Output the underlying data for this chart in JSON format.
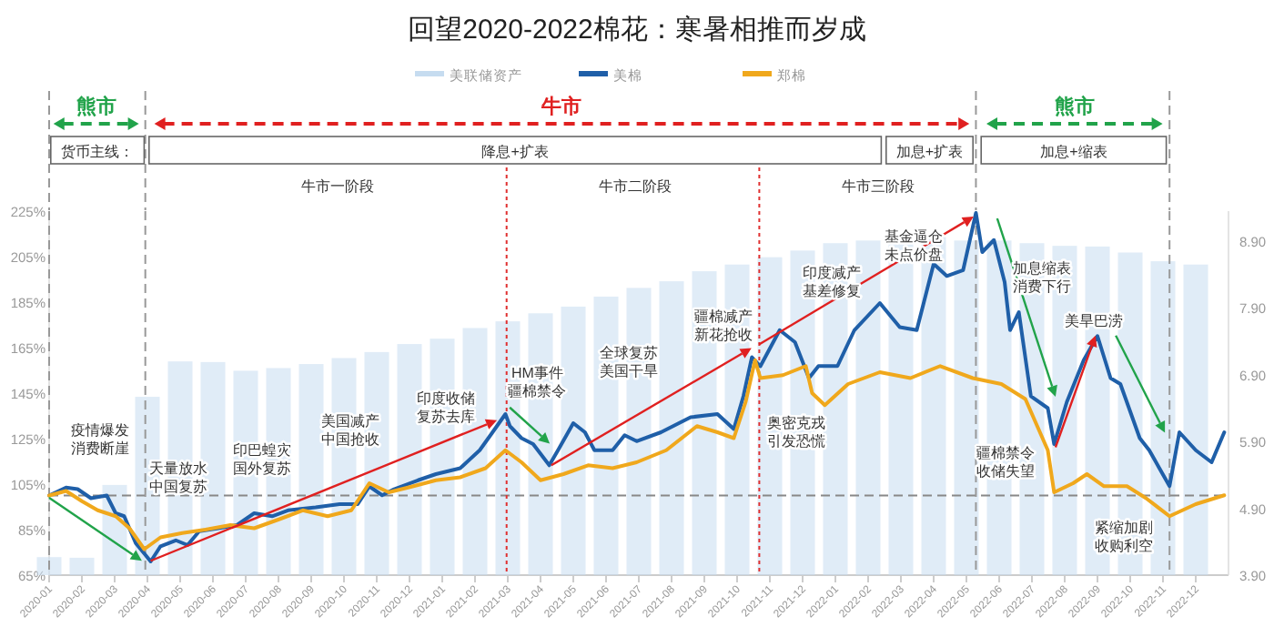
{
  "chart_data": {
    "type": "line",
    "title": "回望2020-2022棉花：寒暑相推而岁成",
    "legend": "top",
    "xlim": [
      "2020-01",
      "2023-01"
    ],
    "xticks": [
      "2020-01",
      "2020-02",
      "2020-03",
      "2020-04",
      "2020-05",
      "2020-06",
      "2020-07",
      "2020-08",
      "2020-09",
      "2020-10",
      "2020-11",
      "2020-12",
      "2021-01",
      "2021-02",
      "2021-03",
      "2021-04",
      "2021-05",
      "2021-06",
      "2021-07",
      "2021-08",
      "2021-09",
      "2021-10",
      "2021-11",
      "2021-12",
      "2022-01",
      "2022-02",
      "2022-03",
      "2022-04",
      "2022-05",
      "2022-06",
      "2022-07",
      "2022-08",
      "2022-09",
      "2022-10",
      "2022-11",
      "2022-12"
    ],
    "ylim": [
      65,
      225
    ],
    "yticks": [
      {
        "value": 65,
        "label": "65%"
      },
      {
        "value": 85,
        "label": "85%"
      },
      {
        "value": 105,
        "label": "105%"
      },
      {
        "value": 125,
        "label": "125%"
      },
      {
        "value": 145,
        "label": "145%"
      },
      {
        "value": 165,
        "label": "165%"
      },
      {
        "value": 185,
        "label": "185%"
      },
      {
        "value": 205,
        "label": "205%"
      },
      {
        "value": 225,
        "label": "225%"
      }
    ],
    "y2lim": [
      3.9,
      9.35
    ],
    "y2ticks": [
      {
        "value": 3.9,
        "label": "3.90"
      },
      {
        "value": 4.9,
        "label": "4.90"
      },
      {
        "value": 5.9,
        "label": "5.90"
      },
      {
        "value": 6.9,
        "label": "6.90"
      },
      {
        "value": 7.9,
        "label": "7.90"
      },
      {
        "value": 8.9,
        "label": "8.90"
      }
    ],
    "series": [
      {
        "name": "美联储资产",
        "type": "bar",
        "axis": "y2",
        "color": "#c6dcf0",
        "x": [
          "2020-01",
          "2020-02",
          "2020-03",
          "2020-04",
          "2020-05",
          "2020-06",
          "2020-07",
          "2020-08",
          "2020-09",
          "2020-10",
          "2020-11",
          "2020-12",
          "2021-01",
          "2021-02",
          "2021-03",
          "2021-04",
          "2021-05",
          "2021-06",
          "2021-07",
          "2021-08",
          "2021-09",
          "2021-10",
          "2021-11",
          "2021-12",
          "2022-01",
          "2022-02",
          "2022-03",
          "2022-04",
          "2022-05",
          "2022-06",
          "2022-07",
          "2022-08",
          "2022-09",
          "2022-10",
          "2022-11",
          "2022-12"
        ],
        "values": [
          4.17,
          4.16,
          5.25,
          6.57,
          7.1,
          7.09,
          6.96,
          7.0,
          7.06,
          7.15,
          7.24,
          7.36,
          7.44,
          7.6,
          7.7,
          7.82,
          7.92,
          8.07,
          8.2,
          8.3,
          8.45,
          8.55,
          8.66,
          8.76,
          8.87,
          8.91,
          8.94,
          8.96,
          8.91,
          8.91,
          8.87,
          8.83,
          8.82,
          8.73,
          8.6,
          8.55
        ]
      },
      {
        "name": "美棉",
        "color": "#1f5fa8",
        "x": [
          "2020-01-01",
          "2020-01-17",
          "2020-01-28",
          "2020-02-09",
          "2020-02-23",
          "2020-03-02",
          "2020-03-10",
          "2020-03-21",
          "2020-03-29",
          "2020-04-04",
          "2020-04-13",
          "2020-04-27",
          "2020-05-08",
          "2020-05-19",
          "2020-06-06",
          "2020-06-23",
          "2020-07-09",
          "2020-07-26",
          "2020-08-10",
          "2020-09-05",
          "2020-09-27",
          "2020-10-14",
          "2020-10-25",
          "2020-11-06",
          "2020-11-17",
          "2020-12-09",
          "2020-12-26",
          "2021-01-18",
          "2021-02-05",
          "2021-02-16",
          "2021-02-27",
          "2021-03-03",
          "2021-03-14",
          "2021-03-25",
          "2021-04-09",
          "2021-04-17",
          "2021-05-01",
          "2021-05-12",
          "2021-05-21",
          "2021-06-07",
          "2021-06-18",
          "2021-06-29",
          "2021-07-22",
          "2021-08-19",
          "2021-09-13",
          "2021-09-28",
          "2021-10-07",
          "2021-10-15",
          "2021-10-23",
          "2021-11-10",
          "2021-11-24",
          "2021-12-07",
          "2021-12-16",
          "2022-01-03",
          "2022-01-19",
          "2022-02-11",
          "2022-02-28",
          "2022-03-16",
          "2022-04-01",
          "2022-04-13",
          "2022-04-28",
          "2022-05-10",
          "2022-05-16",
          "2022-05-27",
          "2022-06-06",
          "2022-06-11",
          "2022-06-19",
          "2022-06-30",
          "2022-07-16",
          "2022-07-22",
          "2022-08-03",
          "2022-08-19",
          "2022-09-01",
          "2022-09-13",
          "2022-09-22",
          "2022-10-10",
          "2022-10-19",
          "2022-11-07",
          "2022-11-16",
          "2022-12-01",
          "2022-12-16",
          "2022-12-28"
        ],
        "values": [
          100,
          103.5,
          102.8,
          98.8,
          100,
          92.2,
          90.9,
          79,
          74.5,
          71,
          77.7,
          80.3,
          78.2,
          84.3,
          85.6,
          87,
          92.2,
          90.9,
          93.5,
          94.8,
          96.2,
          96.2,
          104,
          100.1,
          102.8,
          106.7,
          109.4,
          112,
          119.9,
          127.8,
          135.8,
          130.5,
          125.2,
          122.6,
          113.3,
          119.9,
          131.8,
          127.8,
          119.9,
          119.9,
          126.5,
          123.9,
          127.8,
          134.4,
          135.8,
          129.2,
          143.7,
          160.8,
          156.8,
          172.7,
          167.4,
          151.6,
          156.9,
          156.9,
          172.7,
          184.6,
          174,
          172.7,
          201.8,
          196.5,
          199.1,
          224.2,
          207,
          212.3,
          193.8,
          172.7,
          180.6,
          143.7,
          138.4,
          122.6,
          141.1,
          159.5,
          170.1,
          151.6,
          149,
          125.2,
          119.9,
          104.1,
          127.8,
          119.9,
          114.6,
          127.8
        ]
      },
      {
        "name": "郑棉",
        "color": "#f0a81c",
        "x": [
          "2020-01-01",
          "2020-01-17",
          "2020-02-01",
          "2020-02-15",
          "2020-03-02",
          "2020-03-15",
          "2020-03-29",
          "2020-04-13",
          "2020-05-03",
          "2020-05-25",
          "2020-06-17",
          "2020-07-09",
          "2020-08-02",
          "2020-08-24",
          "2020-09-16",
          "2020-10-08",
          "2020-10-25",
          "2020-11-12",
          "2020-12-04",
          "2020-12-26",
          "2021-01-18",
          "2021-02-10",
          "2021-02-27",
          "2021-03-14",
          "2021-04-01",
          "2021-04-22",
          "2021-05-15",
          "2021-06-07",
          "2021-06-29",
          "2021-07-27",
          "2021-08-25",
          "2021-09-13",
          "2021-09-28",
          "2021-10-09",
          "2021-10-18",
          "2021-10-23",
          "2021-11-13",
          "2021-12-04",
          "2021-12-10",
          "2021-12-22",
          "2022-01-13",
          "2022-02-11",
          "2022-03-10",
          "2022-04-07",
          "2022-05-07",
          "2022-06-03",
          "2022-06-25",
          "2022-07-16",
          "2022-07-22",
          "2022-08-09",
          "2022-08-22",
          "2022-09-07",
          "2022-09-28",
          "2022-10-16",
          "2022-11-07",
          "2022-12-01",
          "2022-12-28"
        ],
        "values": [
          100,
          102,
          97.5,
          93.5,
          90.9,
          85.6,
          76.4,
          81.6,
          83.5,
          85,
          87,
          85.6,
          89.6,
          93.5,
          90.9,
          93.5,
          105.4,
          101.4,
          104,
          106.7,
          108,
          112,
          119.9,
          114.6,
          106.7,
          109.4,
          113.3,
          112,
          114.6,
          119.9,
          130.5,
          127.8,
          125.2,
          141,
          159.5,
          151.6,
          152.9,
          156.9,
          145,
          139.7,
          149,
          154.2,
          151.6,
          156.9,
          151.6,
          149,
          142.4,
          119.9,
          101.4,
          105.4,
          109.4,
          104.1,
          104.1,
          98.8,
          90.9,
          96.2,
          100.1
        ]
      }
    ],
    "ref_lines": [
      {
        "axis": "y",
        "value": 100,
        "label": null,
        "color": "#888888",
        "line_style": "dashed"
      },
      {
        "axis": "x",
        "value": "2020-01-01",
        "label": null,
        "color": "#999999",
        "line_style": "dashed"
      },
      {
        "axis": "x",
        "value": "2020-03-30",
        "label": null,
        "color": "#999999",
        "line_style": "dashed"
      },
      {
        "axis": "x",
        "value": "2021-02-28",
        "label": null,
        "color": "#e03030",
        "line_style": "dotted"
      },
      {
        "axis": "x",
        "value": "2021-10-22",
        "label": null,
        "color": "#e03030",
        "line_style": "dotted"
      },
      {
        "axis": "x",
        "value": "2022-05-10",
        "label": null,
        "color": "#999999",
        "line_style": "dashed"
      },
      {
        "axis": "x",
        "value": "2022-11-07",
        "label": null,
        "color": "#999999",
        "line_style": "dashed"
      }
    ],
    "annotations": [
      "熊市",
      "牛市",
      "熊市",
      "货币主线：",
      "降息+扩表",
      "加息+扩表",
      "加息+缩表",
      "牛市一阶段",
      "牛市二阶段",
      "牛市三阶段",
      "疫情爆发消费断崖",
      "天量放水中国复苏",
      "印巴蝗灾国外复苏",
      "美国减产中国抢收",
      "印度收储复苏去库",
      "HM事件疆棉禁令",
      "全球复苏美国干旱",
      {
        "text": "疆棉减产新花抢收",
        "x": "2021-10-15",
        "y": 160.8
      },
      "奥密克戎引发恐慌",
      "印度减产基差修复",
      "基金逼仓未点价盘",
      "加息缩表消费下行",
      "疆棉禁令收储失望",
      {
        "text": "美旱巴涝",
        "x": "2022-09-01",
        "y": 170.1
      },
      "紧缩加剧收购利空"
    ]
  }
}
